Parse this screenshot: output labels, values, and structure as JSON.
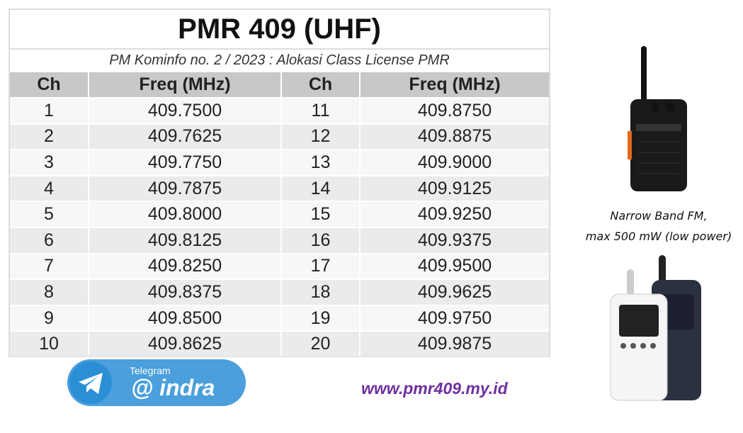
{
  "header": {
    "title": "PMR 409 (UHF)",
    "subtitle": "PM Kominfo no. 2 / 2023 : Alokasi Class License PMR"
  },
  "table": {
    "columns": [
      "Ch",
      "Freq (MHz)",
      "Ch",
      "Freq (MHz)"
    ],
    "rows": [
      [
        "1",
        "409.7500",
        "11",
        "409.8750"
      ],
      [
        "2",
        "409.7625",
        "12",
        "409.8875"
      ],
      [
        "3",
        "409.7750",
        "13",
        "409.9000"
      ],
      [
        "4",
        "409.7875",
        "14",
        "409.9125"
      ],
      [
        "5",
        "409.8000",
        "15",
        "409.9250"
      ],
      [
        "6",
        "409.8125",
        "16",
        "409.9375"
      ],
      [
        "7",
        "409.8250",
        "17",
        "409.9500"
      ],
      [
        "8",
        "409.8375",
        "18",
        "409.9625"
      ],
      [
        "9",
        "409.8500",
        "19",
        "409.9750"
      ],
      [
        "10",
        "409.8625",
        "20",
        "409.9875"
      ]
    ]
  },
  "notes": [
    "Narrow Band FM,",
    "max 500 mW (low power)"
  ],
  "badge": {
    "label": "Telegram",
    "handle": "@ indra"
  },
  "url": "www.pmr409.my.id"
}
